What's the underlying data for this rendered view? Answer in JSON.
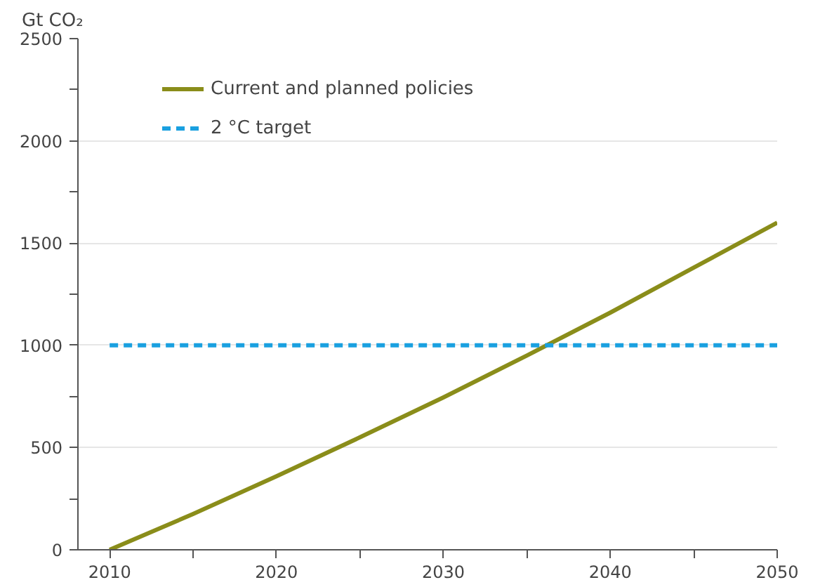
{
  "chart_data": {
    "type": "line",
    "ylabel": "Gt CO₂",
    "x": [
      2010,
      2015,
      2020,
      2025,
      2030,
      2035,
      2040,
      2045,
      2050
    ],
    "series": [
      {
        "name": "Current and planned policies",
        "color": "#8a8d1a",
        "values": [
          0,
          175,
          360,
          550,
          745,
          950,
          1160,
          1380,
          1600
        ],
        "line_style": "solid"
      },
      {
        "name": "2 °C target",
        "color": "#1aa0e0",
        "x": [
          2010,
          2050
        ],
        "values": [
          1000,
          1000
        ],
        "line_style": "dashed"
      }
    ],
    "xlim": [
      2008.1,
      2050
    ],
    "ylim": [
      0,
      2500
    ],
    "xticks": [
      2010,
      {
        "value": 2015,
        "label": null
      },
      2020,
      {
        "value": 2025,
        "label": null
      },
      2030,
      {
        "value": 2035,
        "label": null
      },
      2040,
      {
        "value": 2045,
        "label": null
      },
      2050
    ],
    "yticks": [
      0,
      {
        "value": 250,
        "label": null
      },
      500,
      {
        "value": 750,
        "label": null
      },
      1000,
      {
        "value": 1250,
        "label": null
      },
      1500,
      {
        "value": 1750,
        "label": null
      },
      2000,
      {
        "value": 2250,
        "label": null
      },
      2500
    ],
    "grid": "y",
    "legend": "top left",
    "marker": "none"
  }
}
